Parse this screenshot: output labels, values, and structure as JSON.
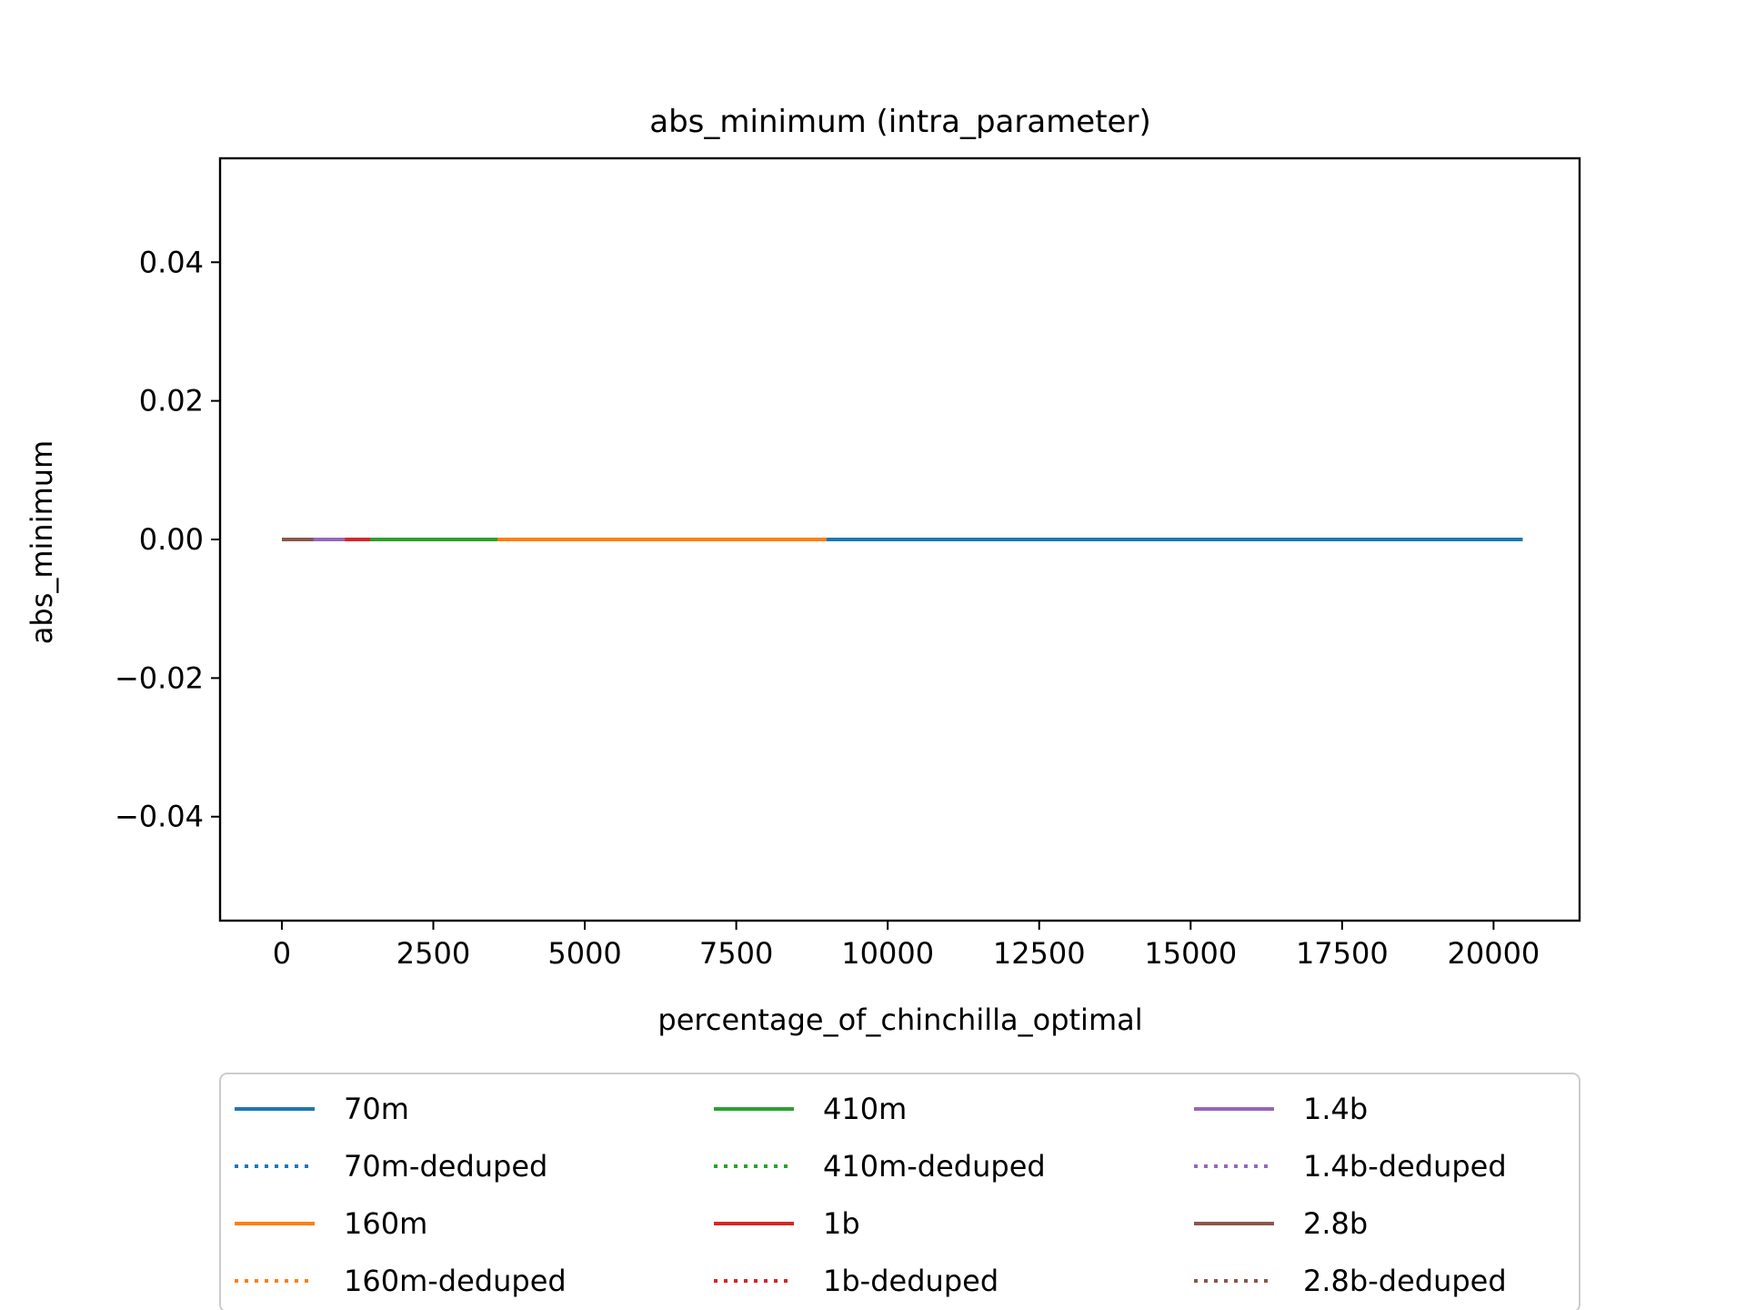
{
  "chart_data": {
    "type": "line",
    "title": "abs_minimum (intra_parameter)",
    "xlabel": "percentage_of_chinchilla_optimal",
    "ylabel": "abs_minimum",
    "xlim": [
      -1020,
      21420
    ],
    "ylim": [
      -0.055,
      0.055
    ],
    "x_ticks": [
      0,
      2500,
      5000,
      7500,
      10000,
      12500,
      15000,
      17500,
      20000
    ],
    "x_tick_labels": [
      "0",
      "2500",
      "5000",
      "7500",
      "10000",
      "12500",
      "15000",
      "17500",
      "20000"
    ],
    "y_ticks": [
      -0.04,
      -0.02,
      0.0,
      0.02,
      0.04
    ],
    "y_tick_labels": [
      "−0.04",
      "−0.02",
      "0.00",
      "0.02",
      "0.04"
    ],
    "grid": false,
    "legend_position": "bottom-outside",
    "series": [
      {
        "name": "70m",
        "color": "#1f77b4",
        "style": "solid",
        "x": [
          0,
          20480
        ],
        "y": [
          0,
          0
        ]
      },
      {
        "name": "70m-deduped",
        "color": "#1f77b4",
        "style": "dotted",
        "x": [
          0,
          20480
        ],
        "y": [
          0,
          0
        ]
      },
      {
        "name": "160m",
        "color": "#ff7f0e",
        "style": "solid",
        "x": [
          0,
          8990
        ],
        "y": [
          0,
          0
        ]
      },
      {
        "name": "160m-deduped",
        "color": "#ff7f0e",
        "style": "dotted",
        "x": [
          0,
          8990
        ],
        "y": [
          0,
          0
        ]
      },
      {
        "name": "410m",
        "color": "#2ca02c",
        "style": "solid",
        "x": [
          0,
          3560
        ],
        "y": [
          0,
          0
        ]
      },
      {
        "name": "410m-deduped",
        "color": "#2ca02c",
        "style": "dotted",
        "x": [
          0,
          3560
        ],
        "y": [
          0,
          0
        ]
      },
      {
        "name": "1b",
        "color": "#d62728",
        "style": "solid",
        "x": [
          0,
          1460
        ],
        "y": [
          0,
          0
        ]
      },
      {
        "name": "1b-deduped",
        "color": "#d62728",
        "style": "dotted",
        "x": [
          0,
          1460
        ],
        "y": [
          0,
          0
        ]
      },
      {
        "name": "1.4b",
        "color": "#9467bd",
        "style": "solid",
        "x": [
          0,
          1040
        ],
        "y": [
          0,
          0
        ]
      },
      {
        "name": "1.4b-deduped",
        "color": "#9467bd",
        "style": "dotted",
        "x": [
          0,
          1040
        ],
        "y": [
          0,
          0
        ]
      },
      {
        "name": "2.8b",
        "color": "#8c564b",
        "style": "solid",
        "x": [
          0,
          520
        ],
        "y": [
          0,
          0
        ]
      },
      {
        "name": "2.8b-deduped",
        "color": "#8c564b",
        "style": "dotted",
        "x": [
          0,
          520
        ],
        "y": [
          0,
          0
        ]
      }
    ]
  }
}
